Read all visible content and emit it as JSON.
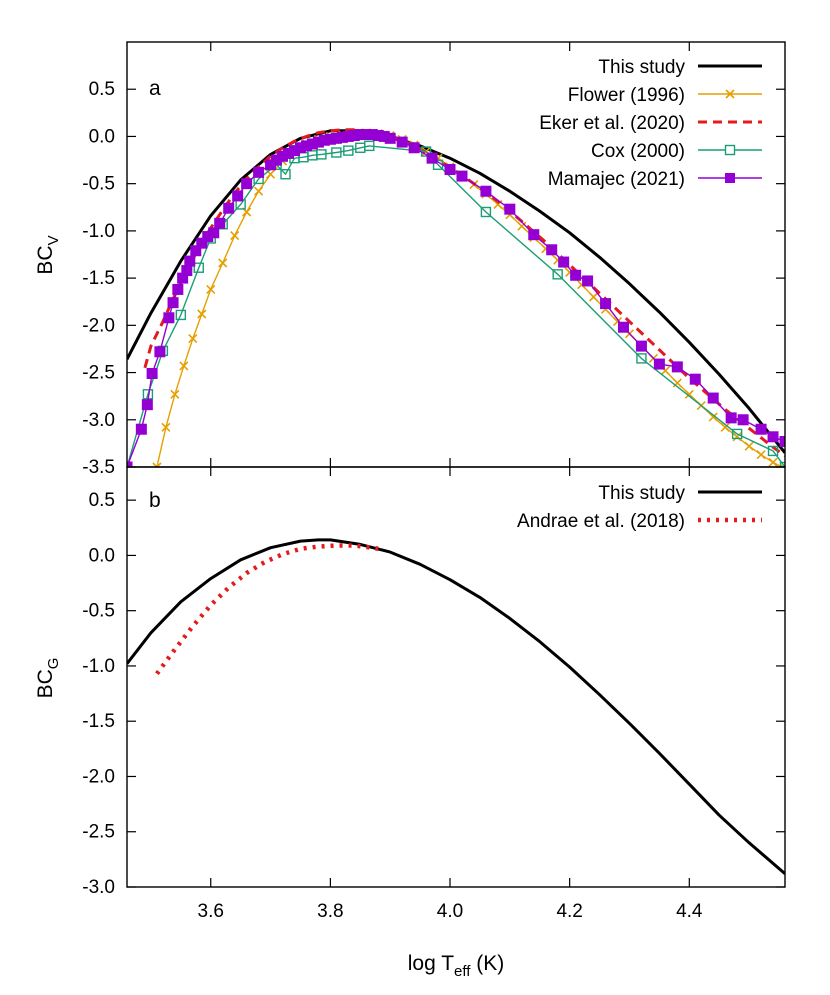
{
  "chart_data": [
    {
      "panel_label": "a",
      "type": "line",
      "ylabel": "BC",
      "ylabel_sub": "V",
      "xlim": [
        3.46,
        4.56
      ],
      "ylim": [
        -3.5,
        1.0
      ],
      "yticks": [
        -3.5,
        -3.0,
        -2.5,
        -2.0,
        -1.5,
        -1.0,
        -0.5,
        0.0,
        0.5
      ],
      "ytick_labels": [
        "-3.5",
        "-3.0",
        "-2.5",
        "-2.0",
        "-1.5",
        "-1.0",
        "-0.5",
        "0.0",
        "0.5"
      ],
      "xticks": [
        3.6,
        3.8,
        4.0,
        4.2,
        4.4
      ],
      "grid": false,
      "legend_position": "top-right",
      "series": [
        {
          "name": "This study",
          "color": "#000000",
          "style": "solid",
          "x": [
            3.46,
            3.5,
            3.55,
            3.6,
            3.65,
            3.7,
            3.75,
            3.8,
            3.85,
            3.9,
            3.95,
            4.0,
            4.05,
            4.1,
            4.15,
            4.2,
            4.25,
            4.3,
            4.35,
            4.4,
            4.45,
            4.5,
            4.56
          ],
          "y": [
            -2.36,
            -1.87,
            -1.32,
            -0.84,
            -0.46,
            -0.19,
            -0.02,
            0.06,
            0.06,
            0.0,
            -0.1,
            -0.23,
            -0.39,
            -0.58,
            -0.79,
            -1.02,
            -1.28,
            -1.56,
            -1.86,
            -2.18,
            -2.52,
            -2.88,
            -3.35
          ]
        },
        {
          "name": "Flower (1996)",
          "color": "#e69f00",
          "style": "line-x",
          "x": [
            3.51,
            3.525,
            3.54,
            3.555,
            3.57,
            3.585,
            3.6,
            3.62,
            3.64,
            3.66,
            3.68,
            3.7,
            3.72,
            3.74,
            3.76,
            3.78,
            3.8,
            3.82,
            3.84,
            3.86,
            3.88,
            3.9,
            3.92,
            3.94,
            3.96,
            3.98,
            4.0,
            4.02,
            4.04,
            4.06,
            4.08,
            4.1,
            4.12,
            4.14,
            4.16,
            4.18,
            4.2,
            4.22,
            4.24,
            4.26,
            4.28,
            4.3,
            4.32,
            4.34,
            4.36,
            4.38,
            4.4,
            4.42,
            4.44,
            4.46,
            4.48,
            4.5,
            4.52,
            4.54,
            4.56
          ],
          "y": [
            -3.5,
            -3.08,
            -2.73,
            -2.43,
            -2.14,
            -1.88,
            -1.62,
            -1.34,
            -1.05,
            -0.8,
            -0.58,
            -0.4,
            -0.26,
            -0.15,
            -0.08,
            -0.03,
            0.0,
            0.02,
            0.03,
            0.04,
            0.03,
            0.01,
            -0.03,
            -0.09,
            -0.16,
            -0.23,
            -0.32,
            -0.41,
            -0.51,
            -0.61,
            -0.72,
            -0.83,
            -0.95,
            -1.07,
            -1.19,
            -1.31,
            -1.44,
            -1.57,
            -1.7,
            -1.83,
            -1.96,
            -2.09,
            -2.22,
            -2.35,
            -2.48,
            -2.61,
            -2.73,
            -2.85,
            -2.97,
            -3.08,
            -3.18,
            -3.28,
            -3.37,
            -3.45,
            -3.52
          ]
        },
        {
          "name": "Eker et al. (2020)",
          "color": "#e41a1c",
          "style": "dashed",
          "x": [
            3.49,
            3.5,
            3.52,
            3.54,
            3.56,
            3.58,
            3.6,
            3.62,
            3.64,
            3.66,
            3.68,
            3.7,
            3.72,
            3.74,
            3.76,
            3.78,
            3.8,
            3.82,
            3.84,
            3.86,
            3.88,
            3.9,
            3.92,
            3.94,
            3.96,
            3.98,
            4.0,
            4.02,
            4.04,
            4.06,
            4.08,
            4.1,
            4.12,
            4.14,
            4.16,
            4.18,
            4.2,
            4.22,
            4.24,
            4.26,
            4.28,
            4.3,
            4.32,
            4.34,
            4.36,
            4.38,
            4.4,
            4.42,
            4.44,
            4.46,
            4.48,
            4.5,
            4.52,
            4.54,
            4.56
          ],
          "y": [
            -2.45,
            -2.22,
            -1.96,
            -1.68,
            -1.42,
            -1.18,
            -0.97,
            -0.78,
            -0.6,
            -0.45,
            -0.32,
            -0.21,
            -0.12,
            -0.05,
            0.0,
            0.04,
            0.06,
            0.07,
            0.07,
            0.06,
            0.04,
            0.01,
            -0.04,
            -0.1,
            -0.17,
            -0.25,
            -0.33,
            -0.41,
            -0.5,
            -0.59,
            -0.69,
            -0.79,
            -0.9,
            -1.01,
            -1.12,
            -1.24,
            -1.36,
            -1.48,
            -1.6,
            -1.72,
            -1.84,
            -1.96,
            -2.08,
            -2.2,
            -2.32,
            -2.44,
            -2.56,
            -2.67,
            -2.78,
            -2.89,
            -2.99,
            -3.09,
            -3.19,
            -3.29,
            -3.38
          ]
        },
        {
          "name": "Cox (2000)",
          "color": "#1b9e77",
          "style": "line-open-square",
          "x": [
            3.46,
            3.495,
            3.52,
            3.55,
            3.58,
            3.6,
            3.62,
            3.65,
            3.68,
            3.71,
            3.725,
            3.74,
            3.755,
            3.77,
            3.785,
            3.81,
            3.83,
            3.85,
            3.865,
            3.96,
            3.98,
            4.06,
            4.18,
            4.32,
            4.48,
            4.54,
            4.56
          ],
          "y": [
            -3.5,
            -2.73,
            -2.27,
            -1.89,
            -1.39,
            -1.08,
            -0.93,
            -0.72,
            -0.45,
            -0.3,
            -0.4,
            -0.23,
            -0.22,
            -0.2,
            -0.19,
            -0.17,
            -0.15,
            -0.12,
            -0.1,
            -0.16,
            -0.3,
            -0.8,
            -1.46,
            -2.35,
            -3.15,
            -3.33,
            -3.5
          ]
        },
        {
          "name": "Mamajec (2021)",
          "color": "#9400d3",
          "style": "line-filled-square",
          "x": [
            3.46,
            3.484,
            3.494,
            3.502,
            3.515,
            3.53,
            3.537,
            3.545,
            3.553,
            3.56,
            3.565,
            3.575,
            3.585,
            3.595,
            3.605,
            3.615,
            3.63,
            3.645,
            3.66,
            3.68,
            3.7,
            3.71,
            3.72,
            3.73,
            3.74,
            3.75,
            3.76,
            3.77,
            3.78,
            3.79,
            3.8,
            3.81,
            3.82,
            3.83,
            3.84,
            3.85,
            3.86,
            3.87,
            3.88,
            3.89,
            3.9,
            3.92,
            3.94,
            3.97,
            4.0,
            4.02,
            4.06,
            4.1,
            4.14,
            4.17,
            4.19,
            4.21,
            4.23,
            4.26,
            4.29,
            4.32,
            4.35,
            4.38,
            4.41,
            4.44,
            4.47,
            4.49,
            4.52,
            4.54,
            4.56
          ],
          "y": [
            -3.5,
            -3.1,
            -2.84,
            -2.51,
            -2.28,
            -1.92,
            -1.76,
            -1.62,
            -1.5,
            -1.42,
            -1.32,
            -1.21,
            -1.13,
            -1.06,
            -1.02,
            -0.92,
            -0.76,
            -0.63,
            -0.5,
            -0.38,
            -0.3,
            -0.25,
            -0.21,
            -0.18,
            -0.15,
            -0.12,
            -0.1,
            -0.08,
            -0.06,
            -0.04,
            -0.03,
            -0.02,
            -0.01,
            0.0,
            0.01,
            0.02,
            0.02,
            0.02,
            0.01,
            0.0,
            -0.02,
            -0.06,
            -0.12,
            -0.23,
            -0.35,
            -0.42,
            -0.58,
            -0.77,
            -1.04,
            -1.2,
            -1.33,
            -1.47,
            -1.53,
            -1.77,
            -2.02,
            -2.22,
            -2.41,
            -2.44,
            -2.57,
            -2.77,
            -2.98,
            -3.0,
            -3.1,
            -3.18,
            -3.23
          ]
        }
      ]
    },
    {
      "panel_label": "b",
      "type": "line",
      "ylabel": "BC",
      "ylabel_sub": "G",
      "xlabel": "log T",
      "xlabel_sub": "eff",
      "xlabel_suffix": " (K)",
      "xlim": [
        3.46,
        4.56
      ],
      "ylim": [
        -3.0,
        0.8
      ],
      "yticks": [
        -3.0,
        -2.5,
        -2.0,
        -1.5,
        -1.0,
        -0.5,
        0.0,
        0.5
      ],
      "ytick_labels": [
        "-3.0",
        "-2.5",
        "-2.0",
        "-1.5",
        "-1.0",
        "-0.5",
        "0.0",
        "0.5"
      ],
      "xticks": [
        3.6,
        3.8,
        4.0,
        4.2,
        4.4
      ],
      "xtick_labels": [
        "3.6",
        "3.8",
        "4.0",
        "4.2",
        "4.4"
      ],
      "grid": false,
      "legend_position": "top-right",
      "series": [
        {
          "name": "This study",
          "color": "#000000",
          "style": "solid",
          "x": [
            3.46,
            3.5,
            3.55,
            3.6,
            3.65,
            3.7,
            3.75,
            3.78,
            3.8,
            3.85,
            3.9,
            3.95,
            4.0,
            4.05,
            4.1,
            4.15,
            4.2,
            4.25,
            4.3,
            4.35,
            4.4,
            4.45,
            4.5,
            4.56
          ],
          "y": [
            -0.98,
            -0.7,
            -0.42,
            -0.21,
            -0.04,
            0.07,
            0.13,
            0.14,
            0.14,
            0.1,
            0.03,
            -0.08,
            -0.22,
            -0.38,
            -0.57,
            -0.78,
            -1.01,
            -1.26,
            -1.52,
            -1.79,
            -2.07,
            -2.35,
            -2.6,
            -2.88
          ]
        },
        {
          "name": "Andrae et al. (2018)",
          "color": "#e41a1c",
          "style": "dotted",
          "x": [
            3.51,
            3.54,
            3.57,
            3.6,
            3.63,
            3.66,
            3.69,
            3.72,
            3.75,
            3.78,
            3.81,
            3.84,
            3.87,
            3.89
          ],
          "y": [
            -1.07,
            -0.85,
            -0.64,
            -0.45,
            -0.29,
            -0.16,
            -0.06,
            0.01,
            0.06,
            0.08,
            0.09,
            0.09,
            0.07,
            0.05
          ]
        }
      ]
    }
  ]
}
